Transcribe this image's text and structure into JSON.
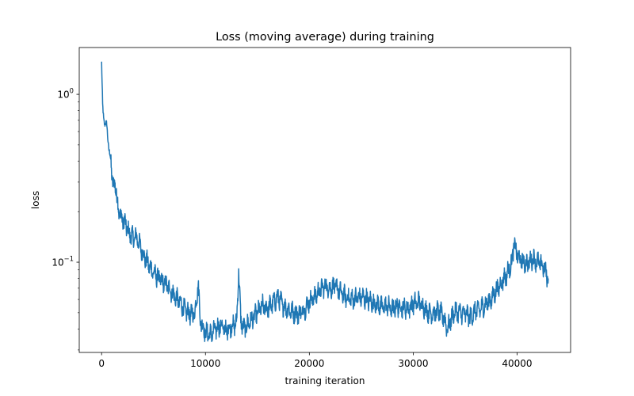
{
  "chart_data": {
    "type": "line",
    "title": "Loss (moving average) during training",
    "xlabel": "training iteration",
    "ylabel": "loss",
    "xlim": [
      -2150,
      45150
    ],
    "ylim": [
      0.029,
      1.9
    ],
    "yscale": "log",
    "grid": false,
    "legend": "none",
    "x_ticks": [
      {
        "value": 0,
        "label": "0"
      },
      {
        "value": 10000,
        "label": "10000"
      },
      {
        "value": 20000,
        "label": "20000"
      },
      {
        "value": 30000,
        "label": "30000"
      },
      {
        "value": 40000,
        "label": "40000"
      }
    ],
    "y_ticks": [
      {
        "value": 1,
        "base": "10",
        "exp": "0"
      },
      {
        "value": 0.1,
        "base": "10",
        "exp": "−1"
      }
    ],
    "y_minor_ticks": [
      0.03,
      0.04,
      0.05,
      0.06,
      0.07,
      0.08,
      0.09,
      0.2,
      0.3,
      0.4,
      0.5,
      0.6,
      0.7,
      0.8,
      0.9
    ],
    "series": [
      {
        "color": "#1f77b4",
        "x": [
          0,
          100,
          200,
          300,
          500,
          700,
          900,
          1100,
          1300,
          1500,
          1700,
          2000,
          2300,
          2600,
          3000,
          3400,
          3800,
          4200,
          4600,
          5000,
          5500,
          6000,
          6500,
          7000,
          7500,
          8000,
          8500,
          9000,
          9300,
          9500,
          9800,
          10000,
          10500,
          11000,
          11500,
          12000,
          12500,
          13000,
          13200,
          13400,
          13700,
          14000,
          14500,
          15000,
          15500,
          16000,
          16500,
          17000,
          17500,
          18000,
          18500,
          19000,
          19500,
          20000,
          20500,
          21000,
          21500,
          22000,
          22500,
          23000,
          23500,
          24000,
          24500,
          25000,
          25500,
          26000,
          26500,
          27000,
          27500,
          28000,
          28500,
          29000,
          29500,
          30000,
          30500,
          31000,
          31500,
          32000,
          32500,
          33000,
          33300,
          33600,
          34000,
          34500,
          35000,
          35500,
          36000,
          36500,
          37000,
          37500,
          38000,
          38500,
          39000,
          39500,
          39700,
          40000,
          40500,
          41000,
          41500,
          42000,
          42500,
          43000
        ],
        "y": [
          1.55,
          0.85,
          0.72,
          0.67,
          0.66,
          0.47,
          0.4,
          0.28,
          0.3,
          0.23,
          0.2,
          0.18,
          0.17,
          0.15,
          0.14,
          0.14,
          0.12,
          0.105,
          0.095,
          0.087,
          0.08,
          0.075,
          0.07,
          0.063,
          0.058,
          0.052,
          0.049,
          0.05,
          0.075,
          0.045,
          0.041,
          0.038,
          0.037,
          0.04,
          0.042,
          0.039,
          0.042,
          0.043,
          0.09,
          0.045,
          0.04,
          0.042,
          0.046,
          0.05,
          0.055,
          0.053,
          0.057,
          0.062,
          0.055,
          0.052,
          0.05,
          0.049,
          0.052,
          0.058,
          0.062,
          0.068,
          0.072,
          0.07,
          0.072,
          0.066,
          0.062,
          0.06,
          0.061,
          0.062,
          0.06,
          0.058,
          0.056,
          0.054,
          0.055,
          0.052,
          0.055,
          0.054,
          0.053,
          0.056,
          0.058,
          0.054,
          0.05,
          0.05,
          0.051,
          0.046,
          0.04,
          0.045,
          0.051,
          0.05,
          0.049,
          0.047,
          0.051,
          0.053,
          0.056,
          0.06,
          0.068,
          0.075,
          0.085,
          0.1,
          0.13,
          0.11,
          0.1,
          0.098,
          0.105,
          0.1,
          0.095,
          0.08
        ]
      }
    ]
  }
}
